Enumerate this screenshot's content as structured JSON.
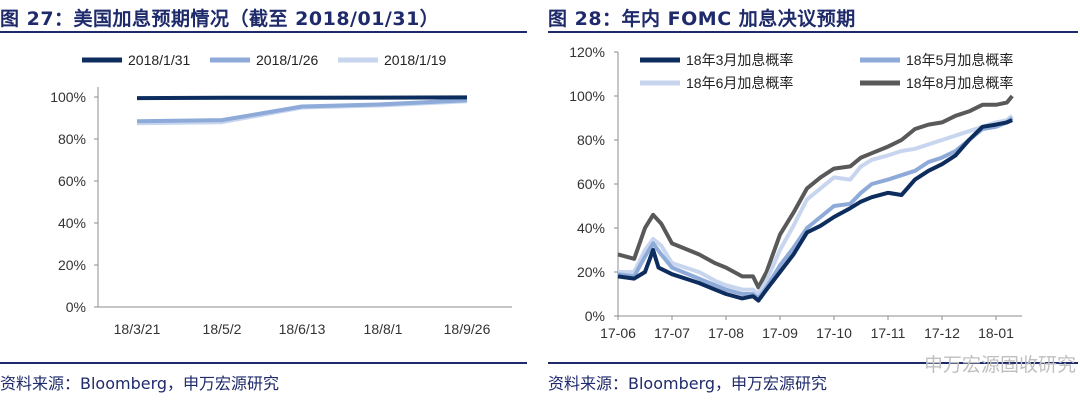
{
  "chart_data": [
    {
      "type": "line",
      "title": "图 27：美国加息预期情况（截至 2018/01/31）",
      "categories": [
        "18/3/21",
        "18/5/2",
        "18/6/13",
        "18/8/1",
        "18/9/26"
      ],
      "yticks": [
        "0%",
        "20%",
        "40%",
        "60%",
        "80%",
        "100%"
      ],
      "ylim": [
        0,
        100
      ],
      "xlabel": "",
      "ylabel": "",
      "legend_position": "top",
      "series": [
        {
          "name": "2018/1/31",
          "color": "#0d2d5e",
          "values": [
            99.5,
            99.6,
            99.6,
            99.7,
            99.8
          ]
        },
        {
          "name": "2018/1/26",
          "color": "#8eaad9",
          "values": [
            88.5,
            89,
            95.5,
            96.5,
            98.5
          ]
        },
        {
          "name": "2018/1/19",
          "color": "#c7d6ee",
          "values": [
            87.5,
            88,
            95,
            96,
            98
          ]
        }
      ],
      "source": "资料来源：Bloomberg，申万宏源研究"
    },
    {
      "type": "line",
      "title": "图 28：年内 FOMC 加息决议预期",
      "x": [
        "17-06",
        "17-07",
        "17-08",
        "17-09",
        "17-10",
        "17-11",
        "17-12",
        "18-01"
      ],
      "yticks": [
        "0%",
        "20%",
        "40%",
        "60%",
        "80%",
        "100%",
        "120%"
      ],
      "ylim": [
        0,
        120
      ],
      "xlabel": "",
      "ylabel": "",
      "legend_position": "top-left",
      "series": [
        {
          "name": "18年3月加息概率",
          "color": "#0d2d5e",
          "points": [
            [
              0,
              18
            ],
            [
              0.3,
              17
            ],
            [
              0.5,
              20
            ],
            [
              0.65,
              30
            ],
            [
              0.75,
              22
            ],
            [
              1.0,
              19
            ],
            [
              1.5,
              15
            ],
            [
              1.8,
              12
            ],
            [
              2.0,
              10
            ],
            [
              2.3,
              8
            ],
            [
              2.5,
              9
            ],
            [
              2.6,
              7
            ],
            [
              2.75,
              12
            ],
            [
              3.0,
              20
            ],
            [
              3.25,
              28
            ],
            [
              3.5,
              38
            ],
            [
              3.75,
              41
            ],
            [
              4.0,
              45
            ],
            [
              4.3,
              49
            ],
            [
              4.5,
              52
            ],
            [
              4.7,
              54
            ],
            [
              5.0,
              56
            ],
            [
              5.25,
              55
            ],
            [
              5.5,
              62
            ],
            [
              5.75,
              66
            ],
            [
              6.0,
              69
            ],
            [
              6.25,
              73
            ],
            [
              6.5,
              80
            ],
            [
              6.75,
              86
            ],
            [
              7.0,
              87
            ],
            [
              7.2,
              88
            ],
            [
              7.3,
              89
            ]
          ]
        },
        {
          "name": "18年5月加息概率",
          "color": "#8eaad9",
          "points": [
            [
              0,
              19
            ],
            [
              0.3,
              18
            ],
            [
              0.5,
              27
            ],
            [
              0.65,
              33
            ],
            [
              0.8,
              28
            ],
            [
              1.0,
              22
            ],
            [
              1.5,
              17
            ],
            [
              1.8,
              14
            ],
            [
              2.0,
              12
            ],
            [
              2.3,
              10
            ],
            [
              2.5,
              10
            ],
            [
              2.6,
              8
            ],
            [
              2.75,
              13
            ],
            [
              3.0,
              23
            ],
            [
              3.25,
              31
            ],
            [
              3.5,
              40
            ],
            [
              3.75,
              45
            ],
            [
              4.0,
              50
            ],
            [
              4.3,
              51
            ],
            [
              4.5,
              56
            ],
            [
              4.7,
              60
            ],
            [
              5.0,
              62
            ],
            [
              5.25,
              64
            ],
            [
              5.5,
              66
            ],
            [
              5.75,
              70
            ],
            [
              6.0,
              72
            ],
            [
              6.25,
              75
            ],
            [
              6.5,
              80
            ],
            [
              6.75,
              85
            ],
            [
              7.0,
              86
            ],
            [
              7.2,
              88
            ],
            [
              7.3,
              90
            ]
          ]
        },
        {
          "name": "18年6月加息概率",
          "color": "#c7d6ee",
          "points": [
            [
              0,
              20
            ],
            [
              0.3,
              20
            ],
            [
              0.5,
              30
            ],
            [
              0.65,
              35
            ],
            [
              0.8,
              32
            ],
            [
              1.0,
              24
            ],
            [
              1.5,
              20
            ],
            [
              1.8,
              16
            ],
            [
              2.0,
              14
            ],
            [
              2.3,
              12
            ],
            [
              2.5,
              12
            ],
            [
              2.6,
              10
            ],
            [
              2.75,
              16
            ],
            [
              3.0,
              30
            ],
            [
              3.25,
              41
            ],
            [
              3.5,
              53
            ],
            [
              3.75,
              58
            ],
            [
              4.0,
              63
            ],
            [
              4.3,
              62
            ],
            [
              4.5,
              68
            ],
            [
              4.7,
              71
            ],
            [
              5.0,
              73
            ],
            [
              5.25,
              75
            ],
            [
              5.5,
              76
            ],
            [
              5.75,
              78
            ],
            [
              6.0,
              80
            ],
            [
              6.25,
              82
            ],
            [
              6.5,
              84
            ],
            [
              6.75,
              86
            ],
            [
              7.0,
              88
            ],
            [
              7.2,
              89
            ],
            [
              7.3,
              91
            ]
          ]
        },
        {
          "name": "18年8月加息概率",
          "color": "#595959",
          "points": [
            [
              0,
              28
            ],
            [
              0.3,
              26
            ],
            [
              0.5,
              40
            ],
            [
              0.65,
              46
            ],
            [
              0.8,
              42
            ],
            [
              1.0,
              33
            ],
            [
              1.5,
              28
            ],
            [
              1.8,
              24
            ],
            [
              2.0,
              22
            ],
            [
              2.3,
              18
            ],
            [
              2.5,
              18
            ],
            [
              2.6,
              13
            ],
            [
              2.75,
              20
            ],
            [
              3.0,
              37
            ],
            [
              3.25,
              47
            ],
            [
              3.5,
              58
            ],
            [
              3.75,
              63
            ],
            [
              4.0,
              67
            ],
            [
              4.3,
              68
            ],
            [
              4.5,
              72
            ],
            [
              4.7,
              74
            ],
            [
              5.0,
              77
            ],
            [
              5.25,
              80
            ],
            [
              5.5,
              85
            ],
            [
              5.75,
              87
            ],
            [
              6.0,
              88
            ],
            [
              6.25,
              91
            ],
            [
              6.5,
              93
            ],
            [
              6.75,
              96
            ],
            [
              7.0,
              96
            ],
            [
              7.2,
              97
            ],
            [
              7.3,
              100
            ]
          ]
        }
      ],
      "source": "资料来源：Bloomberg，申万宏源研究"
    }
  ],
  "watermark": "申万宏源固收研究"
}
